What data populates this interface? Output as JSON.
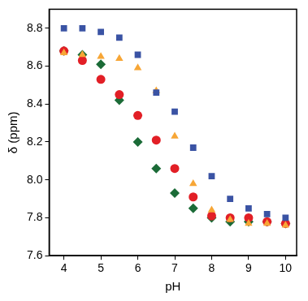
{
  "chart_data": {
    "type": "scatter",
    "x_label": "pH",
    "y_label": "δ (ppm)",
    "x": [
      4,
      4.5,
      5,
      5.5,
      6,
      6.5,
      7,
      7.5,
      8,
      8.5,
      9,
      9.5,
      10
    ],
    "series": [
      {
        "color": "#3a53a4",
        "marker": "square",
        "values": [
          8.8,
          8.8,
          8.78,
          8.75,
          8.66,
          8.46,
          8.36,
          8.17,
          8.02,
          7.9,
          7.85,
          7.82,
          7.8
        ]
      },
      {
        "color": "#f7a636",
        "marker": "triangle",
        "values": [
          8.67,
          8.66,
          8.65,
          8.64,
          8.59,
          8.47,
          8.23,
          7.98,
          7.84,
          7.79,
          7.77,
          7.77,
          7.76
        ]
      },
      {
        "color": "#e21f26",
        "marker": "circle",
        "values": [
          8.68,
          8.63,
          8.53,
          8.45,
          8.34,
          8.21,
          8.06,
          7.91,
          7.81,
          7.8,
          7.8,
          7.78,
          7.77
        ]
      },
      {
        "color": "#1b6b37",
        "marker": "diamond",
        "values": [
          8.68,
          8.66,
          8.61,
          8.42,
          8.2,
          8.06,
          7.93,
          7.85,
          7.8,
          7.78,
          7.78,
          7.78,
          7.77
        ]
      }
    ],
    "xlim": [
      3.6,
      10.3
    ],
    "xticks": [
      4,
      5,
      6,
      7,
      8,
      9,
      10
    ],
    "ylim": [
      7.6,
      8.9
    ],
    "yticks": [
      7.6,
      7.8,
      {
        "value": 8,
        "label": "8.0"
      },
      8.2,
      8.4,
      8.6,
      8.8
    ],
    "grid": false
  }
}
